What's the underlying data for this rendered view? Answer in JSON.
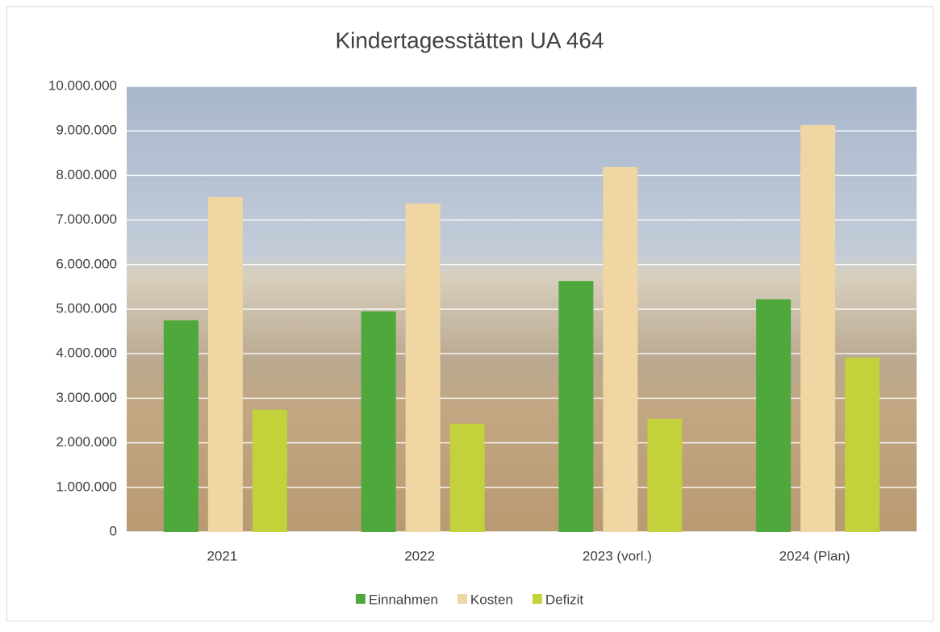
{
  "chart_data": {
    "type": "bar",
    "title": "Kindertagesstätten UA 464",
    "categories": [
      "2021",
      "2022",
      "2023 (vorl.)",
      "2024 (Plan)"
    ],
    "series": [
      {
        "name": "Einnahmen",
        "color": "#4ea83c",
        "values": [
          4750000,
          4950000,
          5630000,
          5220000
        ]
      },
      {
        "name": "Kosten",
        "color": "#efd6a3",
        "values": [
          7520000,
          7370000,
          8190000,
          9130000
        ]
      },
      {
        "name": "Defizit",
        "color": "#c3d13a",
        "values": [
          2740000,
          2430000,
          2540000,
          3910000
        ]
      }
    ],
    "ylim": [
      0,
      10000000
    ],
    "yticks": [
      0,
      {
        "value": 1000000,
        "label": "1.000.000"
      },
      {
        "value": 2000000,
        "label": "2.000.000"
      },
      {
        "value": 3000000,
        "label": "3.000.000"
      },
      {
        "value": 4000000,
        "label": "4.000.000"
      },
      {
        "value": 5000000,
        "label": "5.000.000"
      },
      {
        "value": 6000000,
        "label": "6.000.000"
      },
      {
        "value": 7000000,
        "label": "7.000.000"
      },
      {
        "value": 8000000,
        "label": "8.000.000"
      },
      {
        "value": 9000000,
        "label": "9.000.000"
      },
      {
        "value": 10000000,
        "label": "10.000.000"
      }
    ],
    "grid": true,
    "legend": "bottom"
  }
}
